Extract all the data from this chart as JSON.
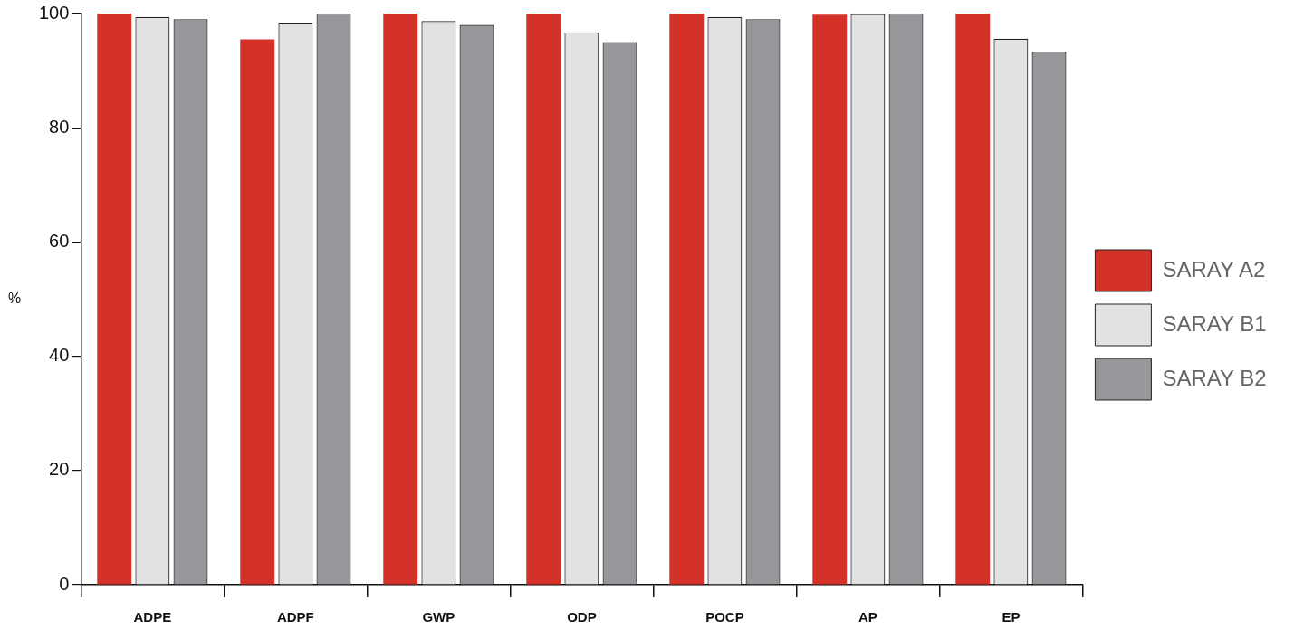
{
  "chart_data": {
    "type": "bar",
    "ylabel": "%",
    "categories": [
      "ADPE",
      "ADPF",
      "GWP",
      "ODP",
      "POCP",
      "AP",
      "EP"
    ],
    "series": [
      {
        "name": "SARAY A2",
        "color": "#d43228",
        "values": [
          100,
          95.5,
          100,
          100,
          100,
          99.8,
          100
        ]
      },
      {
        "name": "SARAY B1",
        "color": "#e1e2e4",
        "values": [
          99.4,
          98.4,
          98.7,
          96.7,
          99.4,
          99.9,
          95.6
        ]
      },
      {
        "name": "SARAY B2",
        "color": "#96979b",
        "values": [
          99.0,
          100,
          98.0,
          95.0,
          99.0,
          100,
          93.3
        ]
      }
    ],
    "ylim": [
      0,
      100
    ],
    "yticks": [
      0,
      20,
      40,
      60,
      80,
      100
    ],
    "legend": "right"
  }
}
